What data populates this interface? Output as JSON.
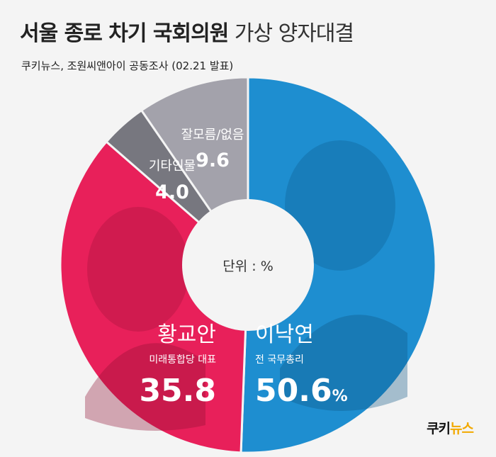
{
  "header": {
    "title_bold": "서울 종로 차기 국회의원",
    "title_light": "가상 양자대결",
    "subtitle": "쿠키뉴스, 조원씨앤아이 공동조사 (02.21 발표)"
  },
  "chart_data": {
    "type": "pie",
    "unit_label": "단위 : %",
    "slices": [
      {
        "label": "이낙연",
        "sublabel": "전 국무총리",
        "value": 50.6,
        "display": "50.6",
        "unit": "%",
        "color": "#1e8ed0"
      },
      {
        "label": "황교안",
        "sublabel": "미래통합당 대표",
        "value": 35.8,
        "display": "35.8",
        "unit": "",
        "color": "#e8205a"
      },
      {
        "label": "기타인물",
        "sublabel": "",
        "value": 4.0,
        "display": "4.0",
        "unit": "",
        "color": "#77777f"
      },
      {
        "label": "잘모름/없음",
        "sublabel": "",
        "value": 9.6,
        "display": "9.6",
        "unit": "",
        "color": "#a3a2ab"
      }
    ]
  },
  "brand": {
    "part1": "쿠키",
    "part2": "뉴스"
  }
}
